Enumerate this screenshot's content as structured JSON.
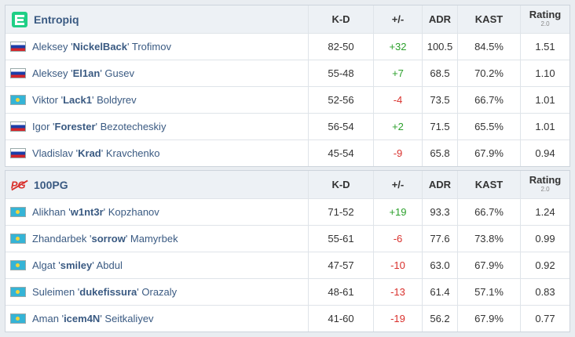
{
  "headers": {
    "kd": "K-D",
    "pm": "+/-",
    "adr": "ADR",
    "kast": "KAST",
    "rating": "Rating",
    "rating_sub": "2.0"
  },
  "teams": [
    {
      "name": "Entropiq",
      "players": [
        {
          "flag": "ru",
          "first": "Aleksey '",
          "nick": "NickelBack",
          "last": "' Trofimov",
          "kd": "82-50",
          "pm": "+32",
          "pm_sign": "pos",
          "adr": "100.5",
          "kast": "84.5%",
          "rating": "1.51"
        },
        {
          "flag": "ru",
          "first": "Aleksey '",
          "nick": "El1an",
          "last": "' Gusev",
          "kd": "55-48",
          "pm": "+7",
          "pm_sign": "pos",
          "adr": "68.5",
          "kast": "70.2%",
          "rating": "1.10"
        },
        {
          "flag": "kz",
          "first": "Viktor '",
          "nick": "Lack1",
          "last": "' Boldyrev",
          "kd": "52-56",
          "pm": "-4",
          "pm_sign": "neg",
          "adr": "73.5",
          "kast": "66.7%",
          "rating": "1.01"
        },
        {
          "flag": "ru",
          "first": "Igor '",
          "nick": "Forester",
          "last": "' Bezotecheskiy",
          "kd": "56-54",
          "pm": "+2",
          "pm_sign": "pos",
          "adr": "71.5",
          "kast": "65.5%",
          "rating": "1.01"
        },
        {
          "flag": "ru",
          "first": "Vladislav '",
          "nick": "Krad",
          "last": "' Kravchenko",
          "kd": "45-54",
          "pm": "-9",
          "pm_sign": "neg",
          "adr": "65.8",
          "kast": "67.9%",
          "rating": "0.94"
        }
      ]
    },
    {
      "name": "100PG",
      "players": [
        {
          "flag": "kz",
          "first": "Alikhan '",
          "nick": "w1nt3r",
          "last": "' Kopzhanov",
          "kd": "71-52",
          "pm": "+19",
          "pm_sign": "pos",
          "adr": "93.3",
          "kast": "66.7%",
          "rating": "1.24"
        },
        {
          "flag": "kz",
          "first": "Zhandarbek '",
          "nick": "sorrow",
          "last": "' Mamyrbek",
          "kd": "55-61",
          "pm": "-6",
          "pm_sign": "neg",
          "adr": "77.6",
          "kast": "73.8%",
          "rating": "0.99"
        },
        {
          "flag": "kz",
          "first": "Algat '",
          "nick": "smiley",
          "last": "' Abdul",
          "kd": "47-57",
          "pm": "-10",
          "pm_sign": "neg",
          "adr": "63.0",
          "kast": "67.9%",
          "rating": "0.92"
        },
        {
          "flag": "kz",
          "first": "Suleimen '",
          "nick": "dukefissura",
          "last": "' Orazaly",
          "kd": "48-61",
          "pm": "-13",
          "pm_sign": "neg",
          "adr": "61.4",
          "kast": "57.1%",
          "rating": "0.83"
        },
        {
          "flag": "kz",
          "first": "Aman '",
          "nick": "icem4N",
          "last": "' Seitkaliyev",
          "kd": "41-60",
          "pm": "-19",
          "pm_sign": "neg",
          "adr": "56.2",
          "kast": "67.9%",
          "rating": "0.77"
        }
      ]
    }
  ]
}
